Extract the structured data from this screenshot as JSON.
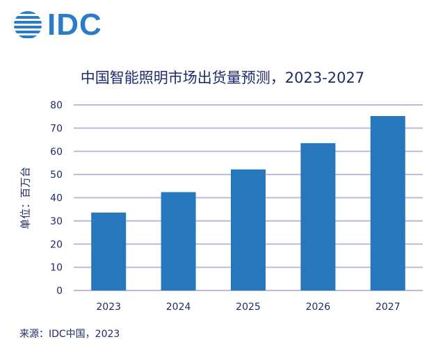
{
  "logo": {
    "text": "IDC"
  },
  "colors": {
    "bar": "#2677bb",
    "grid": "#b8bcdc",
    "text": "#1f2a6b",
    "logo": "#2a7bc8"
  },
  "chart_data": {
    "type": "bar",
    "title": "中国智能照明市场出货量预测，2023-2027",
    "xlabel": "",
    "ylabel": "单位：百万台",
    "categories": [
      "2023",
      "2024",
      "2025",
      "2026",
      "2027"
    ],
    "values": [
      33.6,
      42.4,
      52.2,
      63.5,
      75.2
    ],
    "ylim": [
      0,
      80
    ],
    "yticks": [
      0,
      10,
      20,
      30,
      40,
      50,
      60,
      70,
      80
    ],
    "grid": true
  },
  "source": "来源：IDC中国，2023"
}
